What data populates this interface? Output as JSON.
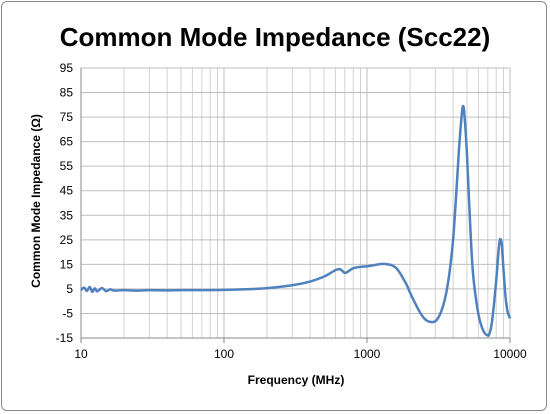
{
  "chart_data": {
    "type": "line",
    "title": "Common Mode Impedance (Scc22)",
    "xlabel": "Frequency (MHz)",
    "ylabel": "Common Mode Impedance (Ω)",
    "x_scale": "log",
    "xlim": [
      10,
      10000
    ],
    "ylim": [
      -15,
      95
    ],
    "x_ticks": [
      "10",
      "100",
      "1000",
      "10000"
    ],
    "y_ticks": [
      "95",
      "85",
      "75",
      "65",
      "55",
      "45",
      "35",
      "25",
      "15",
      "5",
      "-5",
      "-15"
    ],
    "grid": true,
    "legend": "none",
    "colors": {
      "line": "#4f81bd",
      "grid": "#bfbfbf",
      "axis": "#8a8a8a"
    },
    "series": [
      {
        "x": [
          10,
          10.5,
          11,
          11.5,
          12,
          12.5,
          13,
          14,
          15,
          16,
          17,
          20,
          25,
          30,
          40,
          50,
          70,
          100,
          150,
          200,
          300,
          400,
          500,
          550,
          600,
          650,
          700,
          750,
          800,
          900,
          1000,
          1100,
          1200,
          1300,
          1400,
          1500,
          1600,
          1700,
          1800,
          1900,
          2000,
          2200,
          2400,
          2600,
          2800,
          3000,
          3200,
          3400,
          3600,
          3800,
          4000,
          4200,
          4400,
          4600,
          4700,
          4800,
          5000,
          5200,
          5500,
          6000,
          6500,
          7000,
          7200,
          7500,
          8000,
          8300,
          8500,
          8700,
          8800,
          9000,
          9300,
          9600,
          10000
        ],
        "y": [
          4.5,
          5.5,
          4.2,
          5.8,
          3.8,
          5.2,
          4.0,
          5.3,
          4.1,
          4.8,
          4.3,
          4.5,
          4.3,
          4.5,
          4.4,
          4.5,
          4.5,
          4.6,
          4.9,
          5.3,
          6.5,
          8.0,
          10.0,
          11.3,
          12.6,
          13.0,
          11.5,
          12.4,
          13.4,
          14.0,
          14.2,
          14.6,
          15.0,
          15.2,
          15.0,
          14.6,
          13.5,
          11.5,
          9.0,
          6.5,
          3.5,
          -1.5,
          -5.5,
          -7.8,
          -8.5,
          -8.2,
          -6.0,
          -2.0,
          4.0,
          13.0,
          25.0,
          43.0,
          62.0,
          76.0,
          79.5,
          76.0,
          60.0,
          38.0,
          12.0,
          -5.0,
          -12.0,
          -14.0,
          -13.0,
          -8.0,
          8.0,
          20.0,
          25.0,
          24.5,
          22.0,
          13.0,
          2.0,
          -4.0,
          -7.0
        ]
      }
    ]
  }
}
